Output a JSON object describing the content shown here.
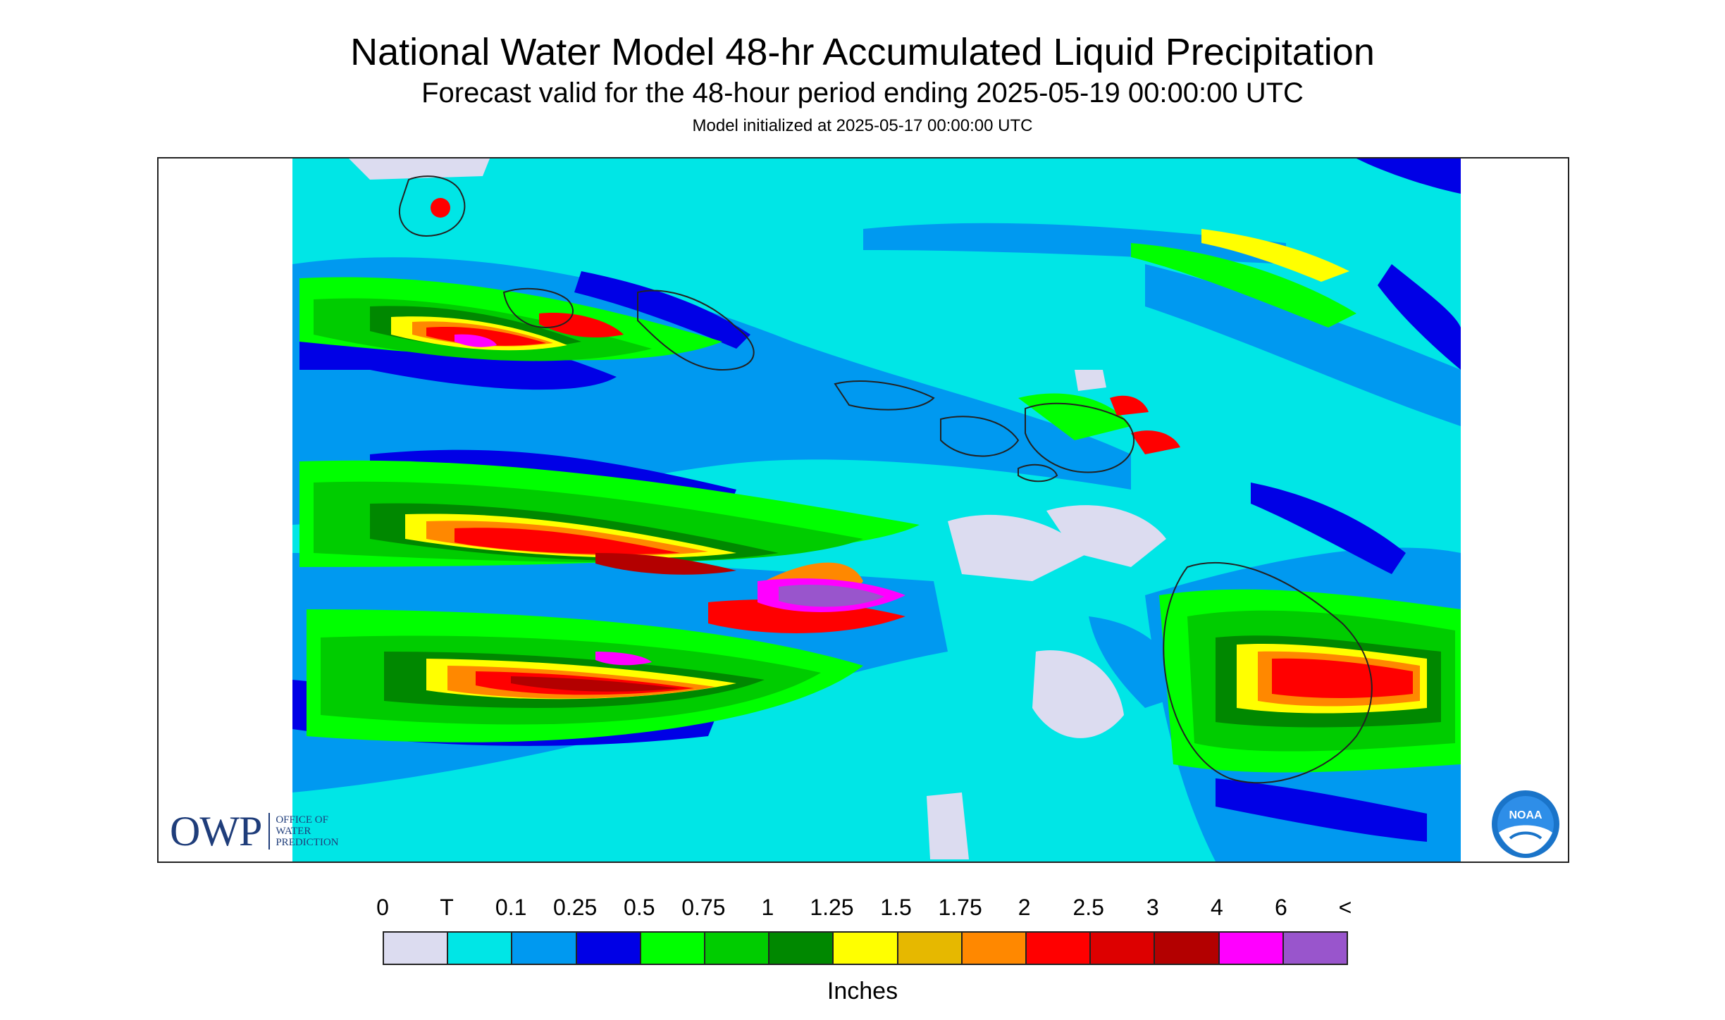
{
  "header": {
    "title": "National Water Model 48-hr Accumulated Liquid Precipitation",
    "subtitle": "Forecast valid for the 48-hour period ending 2025-05-19 00:00:00 UTC",
    "init_line": "Model initialized at 2025-05-17 00:00:00 UTC"
  },
  "logos": {
    "owp_mark": "OWP",
    "owp_lines": [
      "OFFICE OF",
      "WATER",
      "PREDICTION"
    ],
    "noaa_text": "NOAA"
  },
  "legend": {
    "labels": [
      "0",
      "T",
      "0.1",
      "0.25",
      "0.5",
      "0.75",
      "1",
      "1.25",
      "1.5",
      "1.75",
      "2",
      "2.5",
      "3",
      "4",
      "6",
      "<"
    ],
    "colors": [
      "#dcdcf0",
      "#00e6e6",
      "#0099f0",
      "#0000e6",
      "#00ff00",
      "#00cc00",
      "#008800",
      "#ffff00",
      "#e6b800",
      "#ff8800",
      "#ff0000",
      "#dd0000",
      "#b30000",
      "#ff00ff",
      "#9955cc"
    ],
    "units": "Inches"
  },
  "map": {
    "background_color": "#00e6e6",
    "coastline_color": "#222222"
  }
}
